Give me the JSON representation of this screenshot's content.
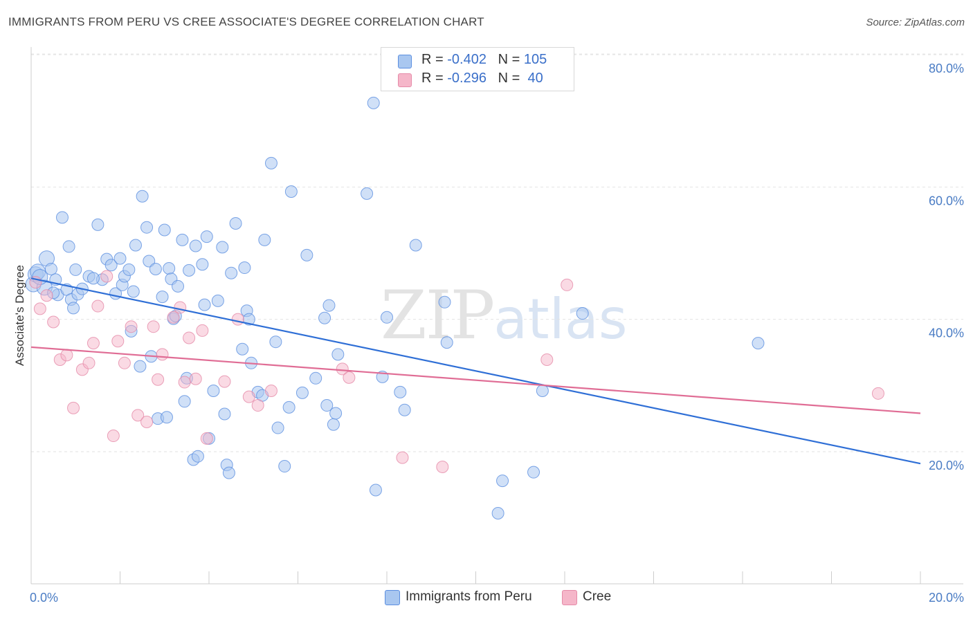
{
  "title": "IMMIGRANTS FROM PERU VS CREE ASSOCIATE'S DEGREE CORRELATION CHART",
  "source": "Source: ZipAtlas.com",
  "watermark": {
    "zip": "ZIP",
    "atlas": "atlas"
  },
  "legend": {
    "rows": [
      {
        "r_label": "R = ",
        "r_value": "-0.402",
        "n_label": "N = ",
        "n_value": "105",
        "color": "#a9c7f0"
      },
      {
        "r_label": "R = ",
        "r_value": "-0.296",
        "n_label": "N = ",
        "n_value": " 40",
        "color": "#f5b6c9"
      }
    ]
  },
  "bottom_legend": [
    {
      "label": "Immigrants from Peru",
      "color": "#a9c7f0"
    },
    {
      "label": "Cree",
      "color": "#f5b6c9"
    }
  ],
  "chart_data": {
    "type": "scatter",
    "title": "IMMIGRANTS FROM PERU VS CREE ASSOCIATE'S DEGREE CORRELATION CHART",
    "xlabel": "",
    "ylabel": "Associate's Degree",
    "xlim": [
      0,
      20
    ],
    "ylim": [
      0,
      84
    ],
    "x_tick_labels": [
      "0.0%",
      "20.0%"
    ],
    "y_ticks": [
      20,
      40,
      60,
      80
    ],
    "y_tick_labels": [
      "20.0%",
      "40.0%",
      "60.0%",
      "80.0%"
    ],
    "grid": true,
    "series": [
      {
        "name": "Immigrants from Peru",
        "color": "#5b8ee0",
        "fill": "#a9c7f0",
        "trend": {
          "x": [
            0,
            20
          ],
          "y": [
            46.2,
            18.2
          ],
          "color": "#2f6fd6"
        },
        "points": [
          [
            0.05,
            45.3
          ],
          [
            0.1,
            46.8
          ],
          [
            0.15,
            47.2
          ],
          [
            0.3,
            44.8
          ],
          [
            0.35,
            49.2
          ],
          [
            0.45,
            47.6
          ],
          [
            0.55,
            46.0
          ],
          [
            0.6,
            43.7
          ],
          [
            0.7,
            55.4
          ],
          [
            0.8,
            44.5
          ],
          [
            0.85,
            51.0
          ],
          [
            0.9,
            43.0
          ],
          [
            0.95,
            41.7
          ],
          [
            1.05,
            43.8
          ],
          [
            1.15,
            44.6
          ],
          [
            1.3,
            46.5
          ],
          [
            1.5,
            54.3
          ],
          [
            1.6,
            46.0
          ],
          [
            1.7,
            49.1
          ],
          [
            1.8,
            48.2
          ],
          [
            1.9,
            43.9
          ],
          [
            2.0,
            49.2
          ],
          [
            2.05,
            45.2
          ],
          [
            2.1,
            46.5
          ],
          [
            2.2,
            47.5
          ],
          [
            2.25,
            38.2
          ],
          [
            2.35,
            51.2
          ],
          [
            2.45,
            32.9
          ],
          [
            2.5,
            58.6
          ],
          [
            2.6,
            53.9
          ],
          [
            2.65,
            48.8
          ],
          [
            2.7,
            34.4
          ],
          [
            2.8,
            47.6
          ],
          [
            2.85,
            25.0
          ],
          [
            2.95,
            43.4
          ],
          [
            3.0,
            53.5
          ],
          [
            3.05,
            25.2
          ],
          [
            3.1,
            47.7
          ],
          [
            3.15,
            46.1
          ],
          [
            3.2,
            40.1
          ],
          [
            3.3,
            45.0
          ],
          [
            3.4,
            52.0
          ],
          [
            3.45,
            27.6
          ],
          [
            3.5,
            31.1
          ],
          [
            3.55,
            47.4
          ],
          [
            3.65,
            18.8
          ],
          [
            3.7,
            51.1
          ],
          [
            3.75,
            19.3
          ],
          [
            3.85,
            48.3
          ],
          [
            3.9,
            42.2
          ],
          [
            3.95,
            52.5
          ],
          [
            4.0,
            22.0
          ],
          [
            4.1,
            29.2
          ],
          [
            4.2,
            42.8
          ],
          [
            4.3,
            50.9
          ],
          [
            4.35,
            25.7
          ],
          [
            4.4,
            18.0
          ],
          [
            4.45,
            16.8
          ],
          [
            4.5,
            47.0
          ],
          [
            4.6,
            54.5
          ],
          [
            4.75,
            35.5
          ],
          [
            4.8,
            47.8
          ],
          [
            4.85,
            41.3
          ],
          [
            4.9,
            40.0
          ],
          [
            4.95,
            33.4
          ],
          [
            5.1,
            29.0
          ],
          [
            5.25,
            52.0
          ],
          [
            5.4,
            63.6
          ],
          [
            5.5,
            36.6
          ],
          [
            5.55,
            23.6
          ],
          [
            5.7,
            17.8
          ],
          [
            5.8,
            26.7
          ],
          [
            5.85,
            59.3
          ],
          [
            6.1,
            28.9
          ],
          [
            6.2,
            49.7
          ],
          [
            6.4,
            31.1
          ],
          [
            6.6,
            40.2
          ],
          [
            6.65,
            27.0
          ],
          [
            6.7,
            42.1
          ],
          [
            6.8,
            24.1
          ],
          [
            6.85,
            25.8
          ],
          [
            6.9,
            34.7
          ],
          [
            7.55,
            59.0
          ],
          [
            7.7,
            72.7
          ],
          [
            7.75,
            14.2
          ],
          [
            7.9,
            31.3
          ],
          [
            8.0,
            40.3
          ],
          [
            8.3,
            29.0
          ],
          [
            8.4,
            26.3
          ],
          [
            8.65,
            51.2
          ],
          [
            9.3,
            42.6
          ],
          [
            9.35,
            36.5
          ],
          [
            10.5,
            10.7
          ],
          [
            10.6,
            15.6
          ],
          [
            11.3,
            16.9
          ],
          [
            11.5,
            29.2
          ],
          [
            12.4,
            40.9
          ],
          [
            16.35,
            36.4
          ],
          [
            1.0,
            47.5
          ],
          [
            1.4,
            46.2
          ],
          [
            0.2,
            46.4
          ],
          [
            0.5,
            44.0
          ],
          [
            2.3,
            44.2
          ],
          [
            3.25,
            40.5
          ],
          [
            5.2,
            28.5
          ]
        ]
      },
      {
        "name": "Cree",
        "color": "#e58aa8",
        "fill": "#f5b6c9",
        "trend": {
          "x": [
            0,
            20
          ],
          "y": [
            35.8,
            25.8
          ],
          "color": "#e06d95"
        },
        "points": [
          [
            0.1,
            45.6
          ],
          [
            0.2,
            41.6
          ],
          [
            0.35,
            43.6
          ],
          [
            0.5,
            39.6
          ],
          [
            0.65,
            33.9
          ],
          [
            0.8,
            34.6
          ],
          [
            0.95,
            26.6
          ],
          [
            1.15,
            32.4
          ],
          [
            1.3,
            33.4
          ],
          [
            1.5,
            42.0
          ],
          [
            1.7,
            46.5
          ],
          [
            1.85,
            22.4
          ],
          [
            1.95,
            36.7
          ],
          [
            2.1,
            33.4
          ],
          [
            2.25,
            38.9
          ],
          [
            2.4,
            25.5
          ],
          [
            2.6,
            24.5
          ],
          [
            2.75,
            38.9
          ],
          [
            2.85,
            30.9
          ],
          [
            2.95,
            34.7
          ],
          [
            3.2,
            40.3
          ],
          [
            3.35,
            41.8
          ],
          [
            3.45,
            30.5
          ],
          [
            3.55,
            37.2
          ],
          [
            3.7,
            31.0
          ],
          [
            3.85,
            38.3
          ],
          [
            3.95,
            22.0
          ],
          [
            4.35,
            30.6
          ],
          [
            4.65,
            40.0
          ],
          [
            4.9,
            28.3
          ],
          [
            5.1,
            27.0
          ],
          [
            5.4,
            29.2
          ],
          [
            7.0,
            32.5
          ],
          [
            7.15,
            31.2
          ],
          [
            8.35,
            19.1
          ],
          [
            9.25,
            17.7
          ],
          [
            11.6,
            33.9
          ],
          [
            12.05,
            45.2
          ],
          [
            19.05,
            28.8
          ],
          [
            1.4,
            36.4
          ]
        ]
      }
    ]
  }
}
